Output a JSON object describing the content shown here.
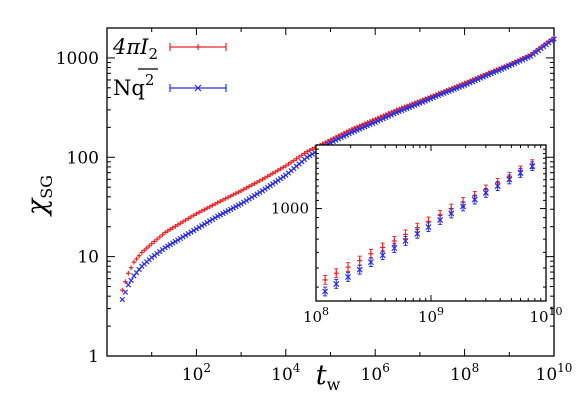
{
  "chart_data": [
    {
      "type": "scatter",
      "xscale": "log",
      "yscale": "log",
      "xlim": [
        1,
        10000000000.0
      ],
      "ylim": [
        1,
        2000
      ],
      "xlabel_base": "t",
      "xlabel_sub": "w",
      "ylabel_base": "χ",
      "ylabel_sub": "SG",
      "x_ticks": [
        {
          "value": 100,
          "base": "10",
          "exp": "2"
        },
        {
          "value": 10000,
          "base": "10",
          "exp": "4"
        },
        {
          "value": 1000000,
          "base": "10",
          "exp": "6"
        },
        {
          "value": 100000000,
          "base": "10",
          "exp": "8"
        },
        {
          "value": 10000000000,
          "base": "10",
          "exp": "10"
        }
      ],
      "y_ticks": [
        {
          "value": 1,
          "label": "1"
        },
        {
          "value": 10,
          "label": "10"
        },
        {
          "value": 100,
          "label": "100"
        },
        {
          "value": 1000,
          "label": "1000"
        }
      ],
      "legend_position": "top-left",
      "series": [
        {
          "name": "4πI2",
          "name_main": "4πI",
          "name_sub": "2",
          "color": "#e8262a",
          "marker": "plus",
          "points": [
            [
              2.2,
              4.6
            ],
            [
              3,
              6.8
            ],
            [
              4,
              8.8
            ],
            [
              6,
              11
            ],
            [
              10,
              13.5
            ],
            [
              20,
              17.5
            ],
            [
              50,
              22.5
            ],
            [
              100,
              27
            ],
            [
              300,
              35
            ],
            [
              1000,
              46
            ],
            [
              3000,
              60
            ],
            [
              10000,
              82
            ],
            [
              30000,
              114
            ],
            [
              100000,
              150
            ],
            [
              300000,
              192
            ],
            [
              1000000,
              242
            ],
            [
              3000000,
              300
            ],
            [
              10000000,
              370
            ],
            [
              30000000,
              450
            ],
            [
              100000000,
              560
            ],
            [
              300000000,
              690
            ],
            [
              1000000000,
              860
            ],
            [
              3000000000,
              1080
            ],
            [
              10000000000,
              1600
            ]
          ]
        },
        {
          "name": "Nq2 (overline)",
          "name_main": "Nq",
          "name_sup": "2",
          "color": "#2a2ee0",
          "marker": "x",
          "points": [
            [
              2.2,
              3.7
            ],
            [
              3,
              5.2
            ],
            [
              4,
              6.4
            ],
            [
              6,
              8
            ],
            [
              10,
              9.8
            ],
            [
              20,
              12.3
            ],
            [
              50,
              15.8
            ],
            [
              100,
              19
            ],
            [
              300,
              25.5
            ],
            [
              1000,
              34
            ],
            [
              3000,
              46
            ],
            [
              10000,
              66
            ],
            [
              30000,
              100
            ],
            [
              100000,
              140
            ],
            [
              300000,
              178
            ],
            [
              1000000,
              225
            ],
            [
              3000000,
              282
            ],
            [
              10000000,
              350
            ],
            [
              30000000,
              430
            ],
            [
              100000000,
              530
            ],
            [
              300000000,
              660
            ],
            [
              1000000000,
              830
            ],
            [
              3000000000,
              1040
            ],
            [
              10000000000,
              1550
            ]
          ]
        }
      ]
    },
    {
      "type": "scatter",
      "role": "inset",
      "xscale": "log",
      "yscale": "log",
      "xlim": [
        100000000,
        10000000000
      ],
      "ylim": [
        340,
        2100
      ],
      "x_ticks": [
        {
          "value": 100000000,
          "base": "10",
          "exp": "8"
        },
        {
          "value": 1000000000,
          "base": "10",
          "exp": "9"
        },
        {
          "value": 10000000000,
          "base": "10",
          "exp": "10"
        }
      ],
      "y_ticks": [
        {
          "value": 1000,
          "label": "1000"
        }
      ],
      "series": [
        {
          "name": "4πI2",
          "color": "#e8262a",
          "marker": "plus",
          "points": [
            [
              120000000,
              435
            ],
            [
              150000000,
              470
            ],
            [
              190000000,
              505
            ],
            [
              240000000,
              545
            ],
            [
              300000000,
              590
            ],
            [
              380000000,
              635
            ],
            [
              480000000,
              685
            ],
            [
              600000000,
              740
            ],
            [
              760000000,
              800
            ],
            [
              950000000,
              860
            ],
            [
              1200000000,
              930
            ],
            [
              1500000000,
              1000
            ],
            [
              1900000000,
              1080
            ],
            [
              2400000000,
              1160
            ],
            [
              3000000000,
              1250
            ],
            [
              3800000000,
              1350
            ],
            [
              4800000000,
              1450
            ],
            [
              6000000000,
              1560
            ],
            [
              7600000000,
              1680
            ]
          ]
        },
        {
          "name": "Nq2 (overline)",
          "color": "#2a2ee0",
          "marker": "x",
          "points": [
            [
              120000000,
              380
            ],
            [
              150000000,
              415
            ],
            [
              190000000,
              450
            ],
            [
              240000000,
              490
            ],
            [
              300000000,
              535
            ],
            [
              380000000,
              580
            ],
            [
              480000000,
              630
            ],
            [
              600000000,
              685
            ],
            [
              760000000,
              745
            ],
            [
              950000000,
              805
            ],
            [
              1200000000,
              875
            ],
            [
              1500000000,
              945
            ],
            [
              1900000000,
              1025
            ],
            [
              2400000000,
              1110
            ],
            [
              3000000000,
              1200
            ],
            [
              3800000000,
              1300
            ],
            [
              4800000000,
              1405
            ],
            [
              6000000000,
              1515
            ],
            [
              7600000000,
              1640
            ]
          ]
        }
      ]
    }
  ]
}
